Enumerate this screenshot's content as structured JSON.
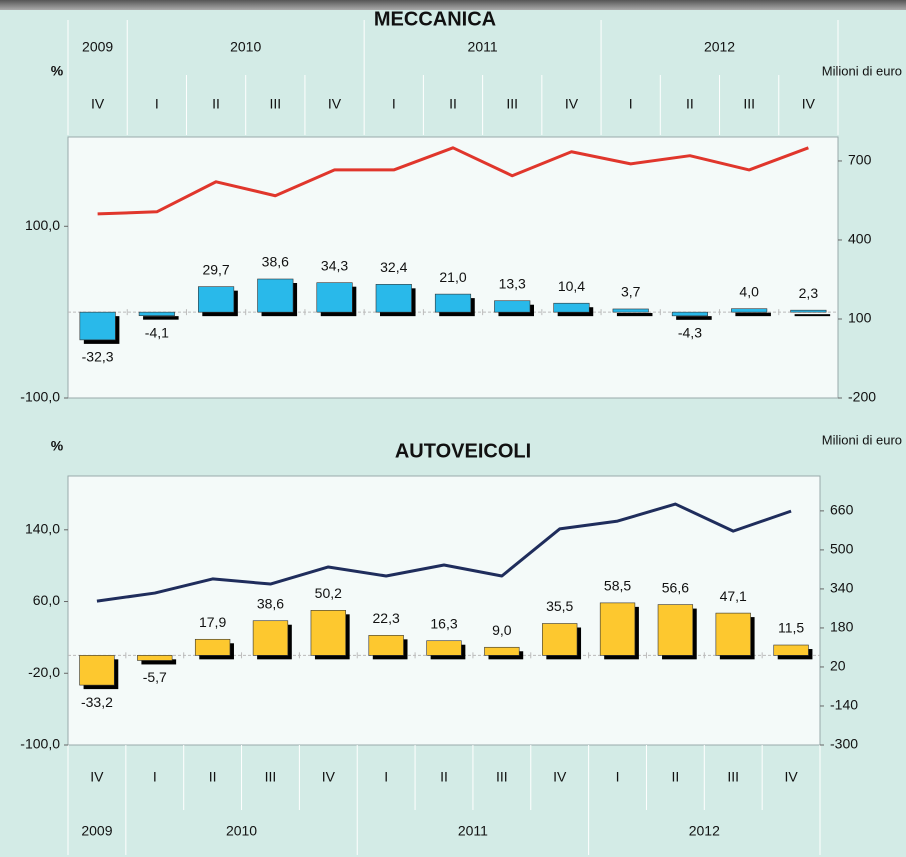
{
  "chart_data": [
    {
      "type": "bar",
      "title": "MECCANICA",
      "y_label": "%",
      "y2_label": "Milioni di euro",
      "years": [
        "2009",
        "2010",
        "2011",
        "2012"
      ],
      "categories": [
        "IV",
        "I",
        "II",
        "III",
        "IV",
        "I",
        "II",
        "III",
        "IV",
        "I",
        "II",
        "III",
        "IV"
      ],
      "ylim": [
        -100,
        204
      ],
      "yticks": [
        {
          "value": -100,
          "label": "-100,0"
        },
        {
          "value": 100,
          "label": "100,0"
        }
      ],
      "y2lim": [
        -200,
        791
      ],
      "y2ticks": [
        -200,
        100,
        400,
        700
      ],
      "series": [
        {
          "type": "bar",
          "color": "#29b9ea",
          "values": [
            -32.3,
            -4.1,
            29.7,
            38.6,
            34.3,
            32.4,
            21.0,
            13.3,
            10.4,
            3.7,
            -4.3,
            4.0,
            2.3
          ],
          "value_labels": [
            "-32,3",
            "-4,1",
            "29,7",
            "38,6",
            "34,3",
            "32,4",
            "21,0",
            "13,3",
            "10,4",
            "3,7",
            "-4,3",
            "4,0",
            "2,3"
          ]
        },
        {
          "type": "line",
          "axis": "y2",
          "color": "#e0362c",
          "values": [
            499,
            507,
            621,
            568,
            666,
            666,
            750,
            644,
            735,
            689,
            720,
            666,
            750
          ]
        }
      ]
    },
    {
      "type": "bar",
      "title": "AUTOVEICOLI",
      "y_label": "%",
      "y2_label": "Milioni di euro",
      "years": [
        "2009",
        "2010",
        "2011",
        "2012"
      ],
      "categories": [
        "IV",
        "I",
        "II",
        "III",
        "IV",
        "I",
        "II",
        "III",
        "IV",
        "I",
        "II",
        "III",
        "IV"
      ],
      "ylim": [
        -100,
        200
      ],
      "yticks": [
        {
          "value": -100,
          "label": "-100,0"
        },
        {
          "value": -20,
          "label": "-20,0"
        },
        {
          "value": 60,
          "label": "60,0"
        },
        {
          "value": 140,
          "label": "140,0"
        }
      ],
      "y2lim": [
        -300,
        803
      ],
      "y2ticks": [
        -300,
        -140,
        20,
        180,
        340,
        500,
        660
      ],
      "series": [
        {
          "type": "bar",
          "color": "#fdc82f",
          "values": [
            -33.2,
            -5.7,
            17.9,
            38.6,
            50.2,
            22.3,
            16.3,
            9.0,
            35.5,
            58.5,
            56.6,
            47.1,
            11.5
          ],
          "value_labels": [
            "-33,2",
            "-5,7",
            "17,9",
            "38,6",
            "50,2",
            "22,3",
            "16,3",
            "9,0",
            "35,5",
            "58,5",
            "56,6",
            "47,1",
            "11,5"
          ]
        },
        {
          "type": "line",
          "axis": "y2",
          "color": "#1f2d5c",
          "values": [
            290,
            323,
            381,
            360,
            430,
            393,
            438,
            393,
            586,
            618,
            688,
            577,
            659
          ]
        }
      ]
    }
  ]
}
